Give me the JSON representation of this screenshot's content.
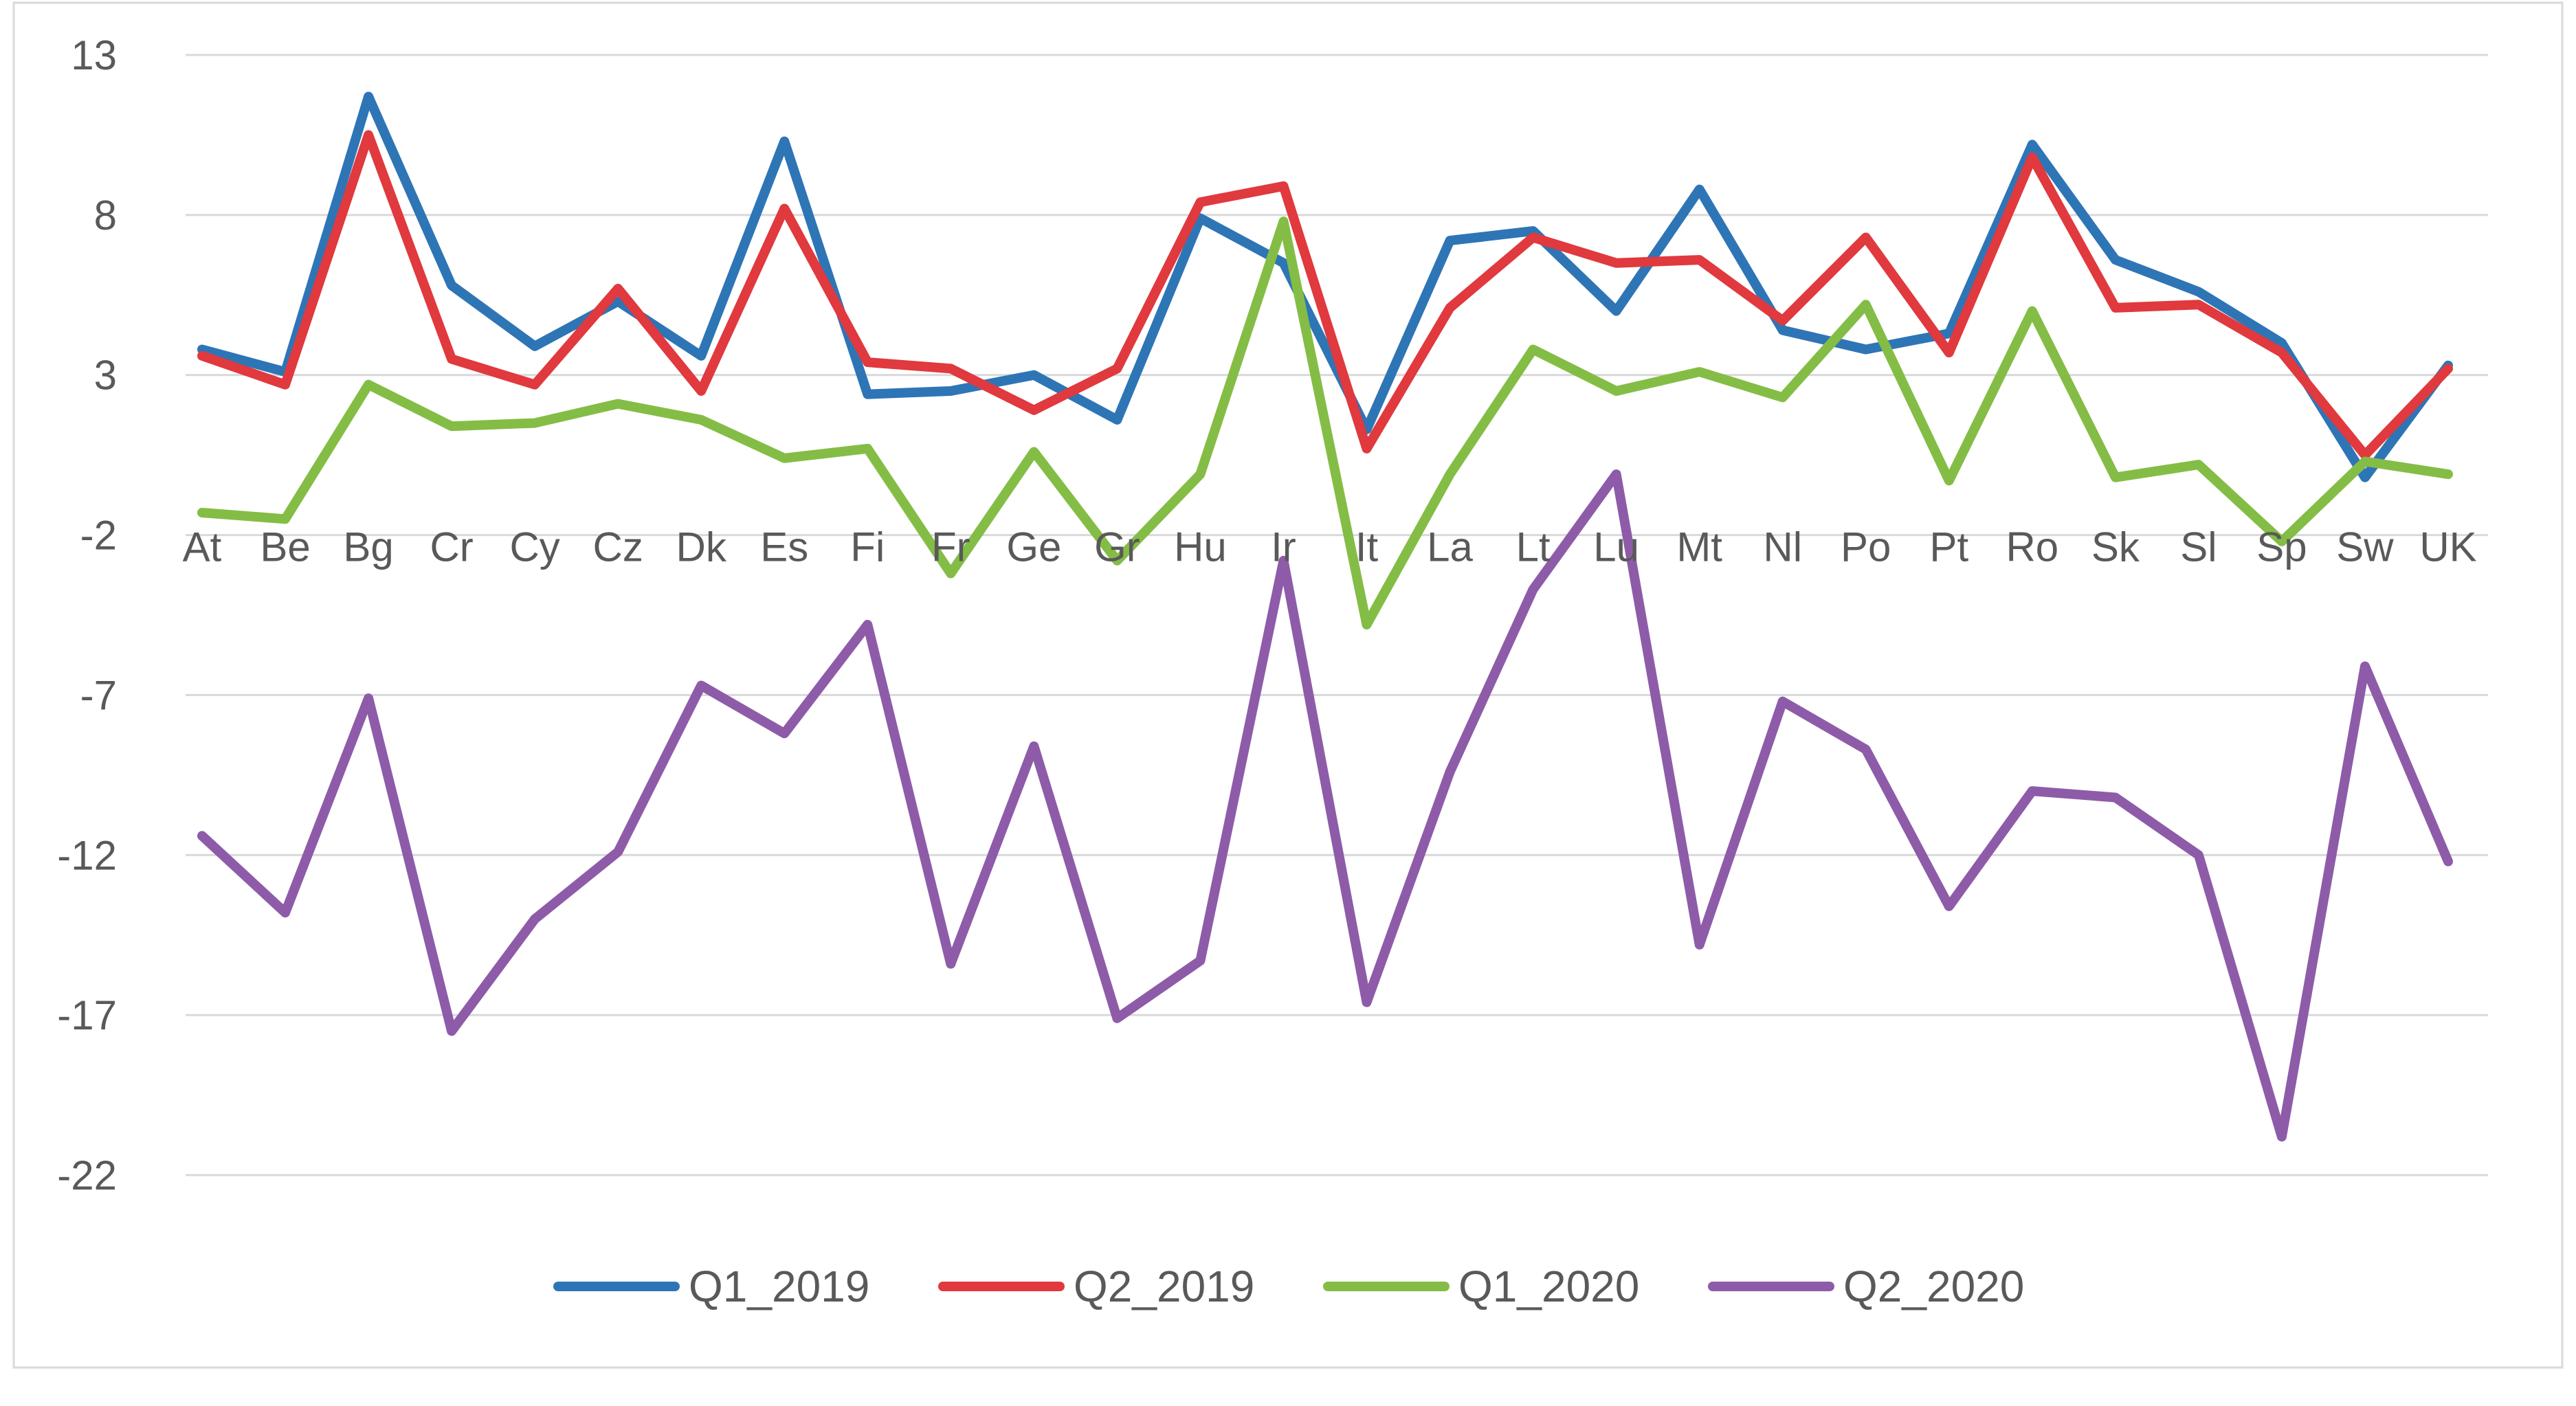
{
  "chart_data": {
    "type": "line",
    "title": "",
    "xlabel": "",
    "ylabel": "",
    "ylim": [
      -22,
      13
    ],
    "yticks": [
      13,
      8,
      3,
      -2,
      -7,
      -12,
      -17,
      -22
    ],
    "grid": true,
    "legend": "bottom",
    "categories": [
      "At",
      "Be",
      "Bg",
      "Cr",
      "Cy",
      "Cz",
      "Dk",
      "Es",
      "Fi",
      "Fr",
      "Ge",
      "Gr",
      "Hu",
      "Ir",
      "It",
      "La",
      "Lt",
      "Lu",
      "Mt",
      "Nl",
      "Po",
      "Pt",
      "Ro",
      "Sk",
      "Sl",
      "Sp",
      "Sw",
      "UK"
    ],
    "series": [
      {
        "name": "Q1_2019",
        "color": "#2e75b6",
        "values": [
          3.8,
          3.1,
          11.7,
          5.8,
          3.9,
          5.3,
          3.6,
          10.3,
          2.4,
          2.5,
          3.0,
          1.6,
          7.9,
          6.5,
          1.3,
          7.2,
          7.5,
          5.0,
          8.8,
          4.4,
          3.8,
          4.3,
          10.2,
          6.6,
          5.6,
          4.0,
          -0.2,
          3.3
        ]
      },
      {
        "name": "Q2_2019",
        "color": "#e0393e",
        "values": [
          3.6,
          2.7,
          10.5,
          3.5,
          2.7,
          5.7,
          2.5,
          8.2,
          3.4,
          3.2,
          1.9,
          3.2,
          8.4,
          8.9,
          0.7,
          5.1,
          7.3,
          6.5,
          6.6,
          4.7,
          7.3,
          3.7,
          9.8,
          5.1,
          5.2,
          3.7,
          0.5,
          3.2
        ]
      },
      {
        "name": "Q1_2020",
        "color": "#84bd45",
        "values": [
          -1.3,
          -1.5,
          2.7,
          1.4,
          1.5,
          2.1,
          1.6,
          0.4,
          0.7,
          -3.2,
          0.6,
          -2.8,
          -0.1,
          7.8,
          -4.8,
          -0.1,
          3.8,
          2.5,
          3.1,
          2.3,
          5.2,
          -0.3,
          5.0,
          -0.2,
          0.2,
          -2.2,
          0.3,
          -0.1
        ]
      },
      {
        "name": "Q2_2020",
        "color": "#8e5ba9",
        "values": [
          -11.4,
          -13.8,
          -7.1,
          -17.5,
          -14.0,
          -11.9,
          -6.7,
          -8.2,
          -4.8,
          -15.4,
          -8.6,
          -17.1,
          -15.3,
          -2.8,
          -16.6,
          -9.4,
          -3.7,
          -0.1,
          -14.8,
          -7.2,
          -8.7,
          -13.6,
          -10.0,
          -10.2,
          -12.0,
          -20.8,
          -6.1,
          -12.2
        ]
      }
    ]
  }
}
